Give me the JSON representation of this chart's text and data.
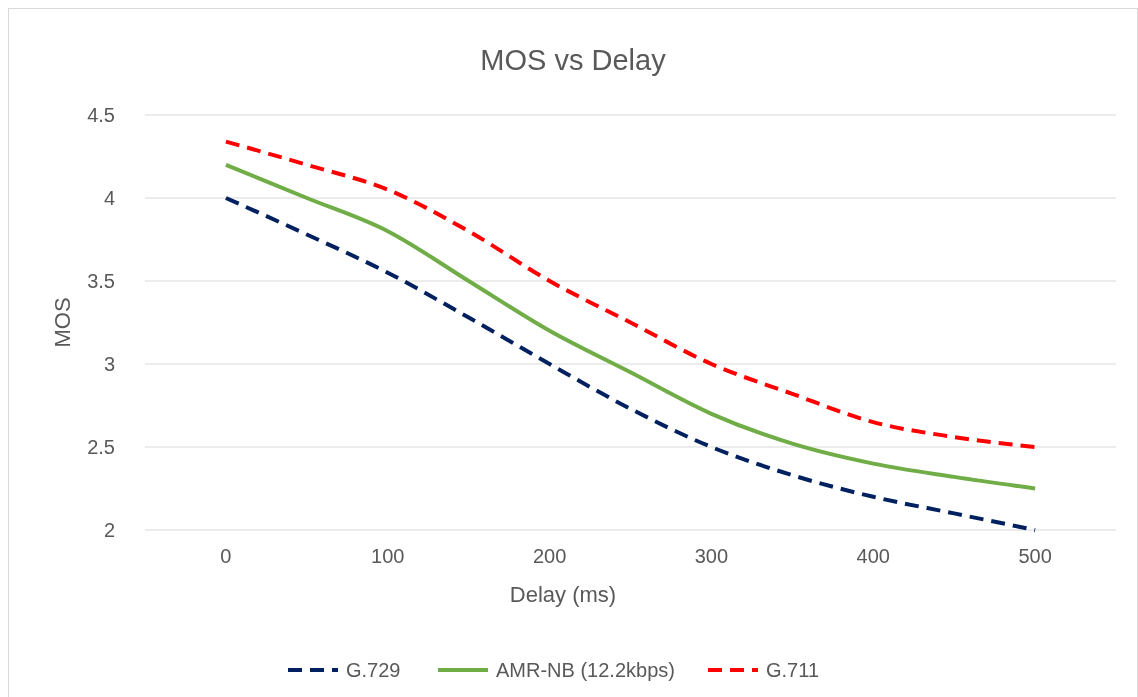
{
  "chart_data": {
    "type": "line",
    "title": "MOS vs Delay",
    "xlabel": "Delay (ms)",
    "ylabel": "MOS",
    "x": [
      0,
      50,
      100,
      150,
      200,
      250,
      300,
      350,
      400,
      450,
      500
    ],
    "series": [
      {
        "name": "G.729",
        "color": "#002060",
        "line_style": "dashed",
        "values": [
          4.0,
          3.78,
          3.55,
          3.28,
          3.0,
          2.73,
          2.5,
          2.33,
          2.2,
          2.1,
          2.0
        ]
      },
      {
        "name": "AMR-NB (12.2kbps)",
        "color": "#70ad47",
        "line_style": "solid",
        "values": [
          4.2,
          4.0,
          3.8,
          3.5,
          3.2,
          2.95,
          2.7,
          2.52,
          2.4,
          2.32,
          2.25
        ]
      },
      {
        "name": "G.711",
        "color": "#ff0000",
        "line_style": "dashed",
        "values": [
          4.34,
          4.2,
          4.05,
          3.8,
          3.5,
          3.25,
          3.0,
          2.82,
          2.65,
          2.56,
          2.5
        ]
      }
    ],
    "xlim": [
      -50,
      550
    ],
    "xticks": [
      0,
      100,
      200,
      300,
      400,
      500
    ],
    "ylim": [
      2,
      4.5
    ],
    "yticks": [
      2,
      2.5,
      3,
      3.5,
      4,
      4.5
    ],
    "grid": "y",
    "legend": "bottom",
    "marker": "none"
  }
}
